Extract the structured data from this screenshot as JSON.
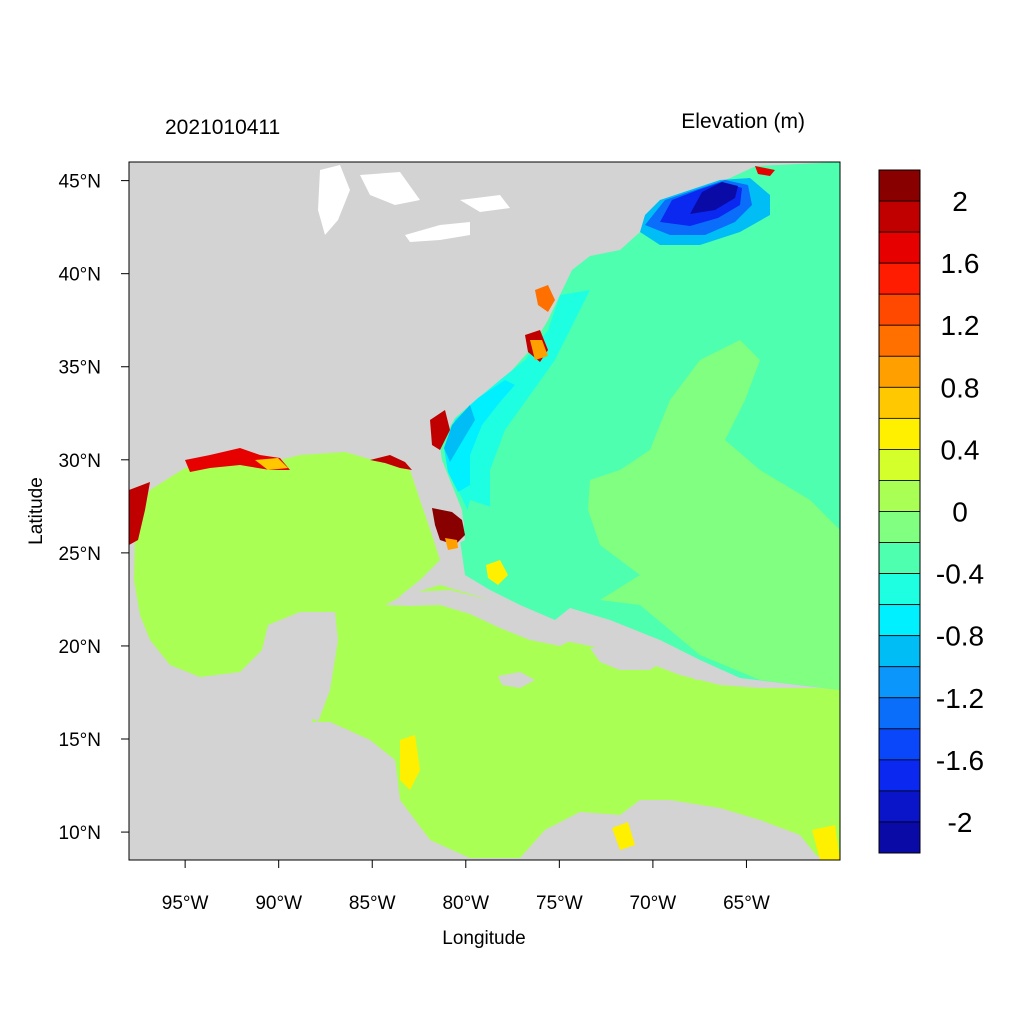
{
  "header": {
    "date_label": "2021010411",
    "colorbar_title": "Elevation (m)"
  },
  "axes": {
    "xlabel": "Longitude",
    "ylabel": "Latitude",
    "lon_ticks": [
      "95°W",
      "90°W",
      "85°W",
      "80°W",
      "75°W",
      "70°W",
      "65°W"
    ],
    "lat_ticks": [
      "45°N",
      "40°N",
      "35°N",
      "30°N",
      "25°N",
      "20°N",
      "15°N",
      "10°N"
    ],
    "lon_values": [
      -95,
      -90,
      -85,
      -80,
      -75,
      -70,
      -65
    ],
    "lat_values": [
      45,
      40,
      35,
      30,
      25,
      20,
      15,
      10
    ],
    "lon_range": [
      -98,
      -60
    ],
    "lat_range": [
      8.5,
      46
    ],
    "grid": false
  },
  "colorbar": {
    "levels": [
      -2.2,
      -2.0,
      -1.8,
      -1.6,
      -1.4,
      -1.2,
      -1.0,
      -0.8,
      -0.6,
      -0.4,
      -0.2,
      0.0,
      0.2,
      0.4,
      0.6,
      0.8,
      1.0,
      1.2,
      1.4,
      1.6,
      1.8,
      2.0,
      2.2
    ],
    "colors": [
      "#0a0aa6",
      "#0a14c8",
      "#0a28f0",
      "#0a46fa",
      "#0a6efa",
      "#0a96fa",
      "#00bef5",
      "#00f0ff",
      "#1effe1",
      "#4effb0",
      "#80ff80",
      "#aaff55",
      "#d4ff2b",
      "#fff000",
      "#ffc800",
      "#ffa000",
      "#ff7000",
      "#ff4800",
      "#ff1c00",
      "#e60000",
      "#c00000",
      "#880000"
    ],
    "tick_labels": [
      "2",
      "1.6",
      "1.2",
      "0.8",
      "0.4",
      "0",
      "-0.4",
      "-0.8",
      "-1.2",
      "-1.6",
      "-2"
    ]
  },
  "colors": {
    "land": "#d3d3d3",
    "ocean_base": "#4effb0",
    "gulf_caribbean": "#aaff55",
    "central_atlantic": "#80ff80",
    "frame": "#000000"
  }
}
